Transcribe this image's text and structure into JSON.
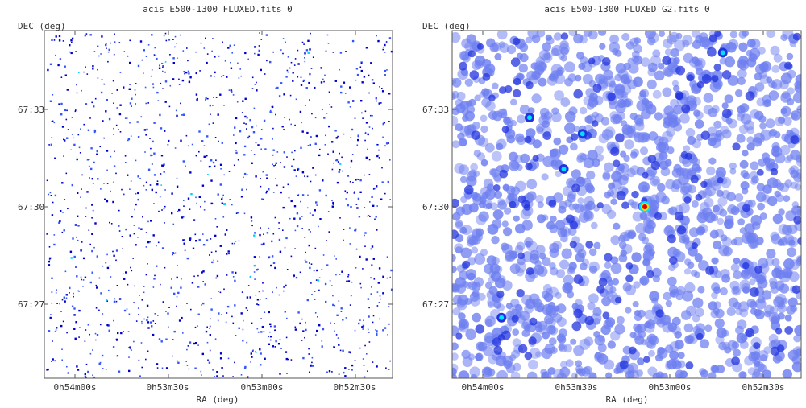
{
  "chart_data": [
    {
      "type": "heatmap",
      "title": "acis_E500-1300_FLUXED.fits_0",
      "xlabel": "RA (deg)",
      "ylabel": "DEC (deg)",
      "x_ticks": [
        "0h54m00s",
        "0h53m30s",
        "0h53m00s",
        "0h52m30s"
      ],
      "y_ticks": [
        "67:33",
        "67:30",
        "67:27"
      ],
      "grid": false,
      "colormap": [
        "#0000cc",
        "#3355ff",
        "#00d0ff"
      ],
      "bright_sources": [
        {
          "ra": "0h53m12s",
          "dec": "67:30:05",
          "level": "medium"
        },
        {
          "ra": "0h52m45s",
          "dec": "67:34:45",
          "level": "medium"
        }
      ]
    },
    {
      "type": "heatmap",
      "title": "acis_E500-1300_FLUXED_G2.fits_0",
      "xlabel": "RA (deg)",
      "ylabel": "DEC (deg)",
      "x_ticks": [
        "0h54m00s",
        "0h53m30s",
        "0h53m00s",
        "0h52m30s"
      ],
      "y_ticks": [
        "67:33",
        "67:30",
        "67:27"
      ],
      "grid": false,
      "colormap": [
        "#6e7ff0",
        "#2233dd",
        "#00e0ff",
        "#ffd400",
        "#e00000"
      ],
      "bright_sources": [
        {
          "ra": "0h53m08s",
          "dec": "67:30:00",
          "level": "max"
        },
        {
          "ra": "0h53m54s",
          "dec": "67:26:35",
          "level": "high"
        },
        {
          "ra": "0h53m45s",
          "dec": "67:32:45",
          "level": "high"
        },
        {
          "ra": "0h53m34s",
          "dec": "67:31:10",
          "level": "high"
        },
        {
          "ra": "0h52m43s",
          "dec": "67:34:45",
          "level": "high"
        },
        {
          "ra": "0h53m28s",
          "dec": "67:32:15",
          "level": "high"
        }
      ]
    }
  ]
}
